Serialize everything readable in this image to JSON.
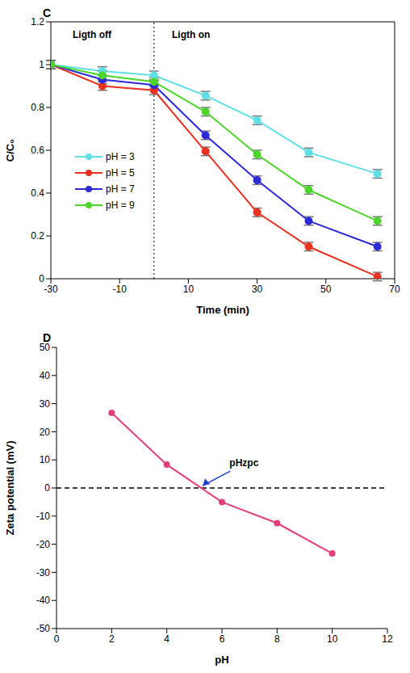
{
  "chart_data": [
    {
      "type": "line",
      "title": "C",
      "x_label": "Time (min)",
      "y_label": "C/C₀",
      "x": [
        -30,
        -15,
        0,
        15,
        30,
        45,
        65
      ],
      "series": [
        {
          "name": "pH = 3",
          "color": "#5ee0e6",
          "marker": "circle",
          "values": [
            1,
            0.97,
            0.95,
            0.855,
            0.74,
            0.59,
            0.49
          ],
          "error": [
            0.02,
            0.02,
            0.02,
            0.02,
            0.02,
            0.02,
            0.02
          ]
        },
        {
          "name": "pH = 5",
          "color": "#e8321f",
          "marker": "circle",
          "values": [
            1,
            0.9,
            0.88,
            0.595,
            0.31,
            0.15,
            0.01
          ],
          "error": [
            0.02,
            0.02,
            0.02,
            0.02,
            0.02,
            0.02,
            0.02
          ]
        },
        {
          "name": "pH = 7",
          "color": "#2b2bd9",
          "marker": "circle",
          "values": [
            1,
            0.93,
            0.905,
            0.67,
            0.46,
            0.27,
            0.15
          ],
          "error": [
            0.02,
            0.02,
            0.02,
            0.02,
            0.02,
            0.02,
            0.02
          ]
        },
        {
          "name": "pH = 9",
          "color": "#4cd62a",
          "marker": "circle",
          "values": [
            1,
            0.95,
            0.92,
            0.78,
            0.58,
            0.415,
            0.27
          ],
          "error": [
            0.02,
            0.02,
            0.02,
            0.02,
            0.02,
            0.02,
            0.02
          ]
        }
      ],
      "xlim": [
        -30,
        70
      ],
      "xticks": [
        -30,
        -10,
        10,
        30,
        50,
        70
      ],
      "ylim": [
        0,
        1.2
      ],
      "yticks": [
        0,
        0.2,
        0.4,
        0.6,
        0.8,
        1,
        1.2
      ],
      "grid": false,
      "legend": "left",
      "reference_lines": [
        {
          "x": 0,
          "line_style": "dotted"
        }
      ],
      "annotations": [
        {
          "text": "Ligth off"
        },
        {
          "text": "Ligth on"
        }
      ]
    },
    {
      "type": "line",
      "title": "D",
      "x_label": "pH",
      "y_label": "Zeta potential (mV)",
      "x": [
        2,
        4,
        6,
        8,
        10
      ],
      "series": [
        {
          "name": "Zeta potential",
          "color": "#e2407a",
          "marker": "circle",
          "values": [
            26.7,
            8.3,
            -5,
            -12.5,
            -23.3
          ]
        }
      ],
      "xlim": [
        0,
        12
      ],
      "xticks": [
        0,
        2,
        4,
        6,
        8,
        10,
        12
      ],
      "ylim": [
        -50,
        50
      ],
      "yticks": [
        -50,
        -40,
        -30,
        -20,
        -10,
        0,
        10,
        20,
        30,
        40,
        50
      ],
      "grid": false,
      "reference_lines": [
        {
          "y": 0,
          "line_style": "dashed"
        }
      ],
      "annotations": [
        {
          "text": "pHzpc",
          "x": 5.2,
          "y": 0
        }
      ]
    }
  ]
}
